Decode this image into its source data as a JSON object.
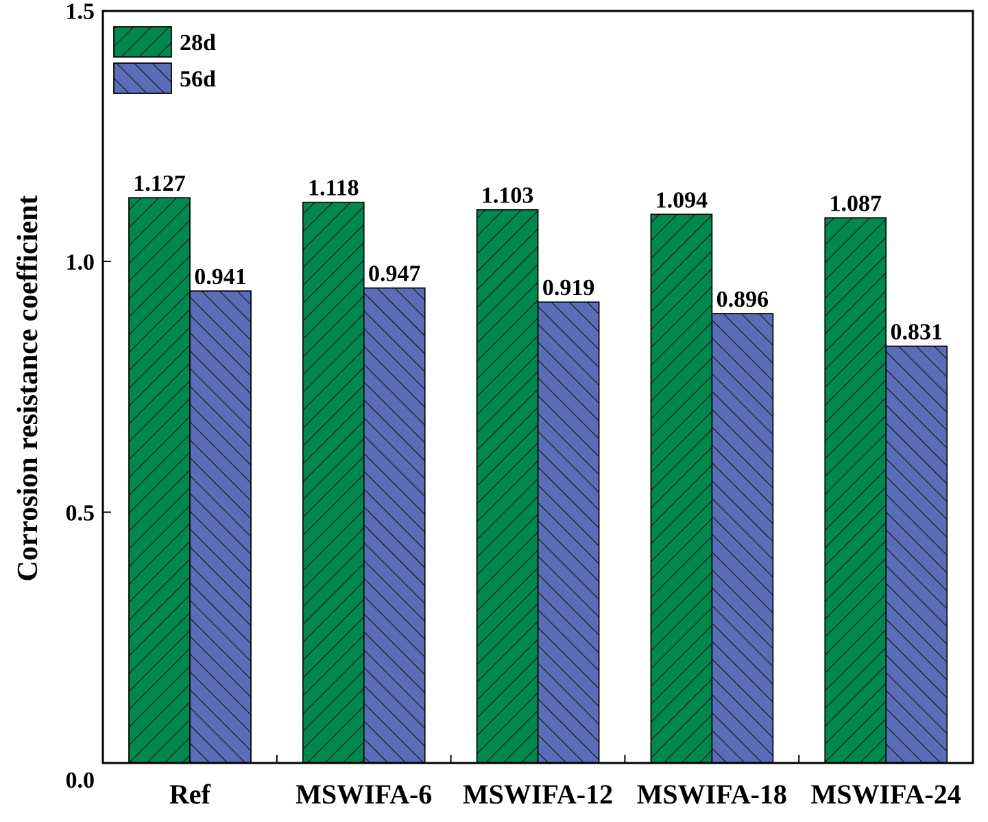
{
  "chart_data": {
    "type": "bar",
    "title": "",
    "xlabel": "",
    "ylabel": "Corrosion resistance coefficient",
    "ylim": [
      0,
      1.5
    ],
    "yticks": [
      0.0,
      0.5,
      1.0,
      1.5
    ],
    "ytick_labels": [
      "0.0",
      "0.5",
      "1.0",
      "1.5"
    ],
    "grid": false,
    "legend_position": "top-left",
    "categories": [
      "Ref",
      "MSWIFA-6",
      "MSWIFA-12",
      "MSWIFA-18",
      "MSWIFA-24"
    ],
    "series": [
      {
        "name": "28d",
        "color": "#00884f",
        "hatch": "forward-diagonal",
        "values": [
          1.127,
          1.118,
          1.103,
          1.094,
          1.087
        ],
        "labels": [
          "1.127",
          "1.118",
          "1.103",
          "1.094",
          "1.087"
        ]
      },
      {
        "name": "56d",
        "color": "#5a6db6",
        "hatch": "back-diagonal",
        "values": [
          0.941,
          0.947,
          0.919,
          0.896,
          0.831
        ],
        "labels": [
          "0.941",
          "0.947",
          "0.919",
          "0.896",
          "0.831"
        ]
      }
    ]
  }
}
